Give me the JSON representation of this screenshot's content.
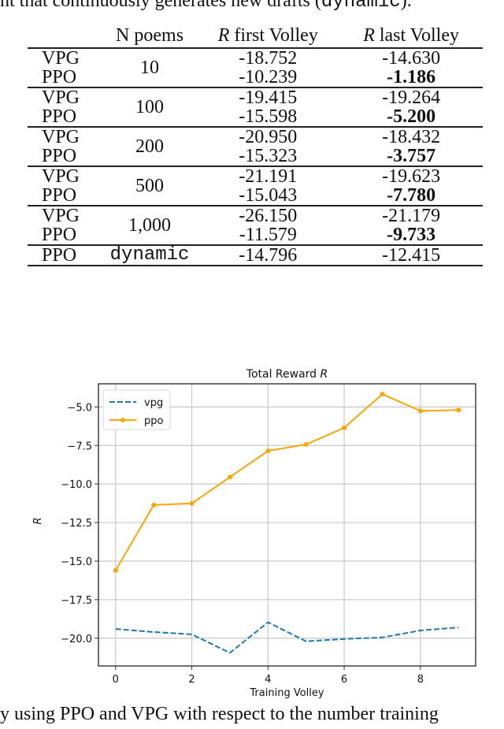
{
  "top_text": {
    "before": "nt that continuously generates new drafts (",
    "code": "dynamic",
    "after": ")."
  },
  "table": {
    "headers": {
      "method": "",
      "n_poems": "N poems",
      "first_r": "R",
      "first_label": " first Volley",
      "last_r": "R",
      "last_label": " last Volley"
    },
    "groups": [
      {
        "n": "10",
        "rows": [
          {
            "method": "VPG",
            "first": "-18.752",
            "last": "-14.630",
            "bold": false
          },
          {
            "method": "PPO",
            "first": "-10.239",
            "last": "-1.186",
            "bold": true
          }
        ]
      },
      {
        "n": "100",
        "rows": [
          {
            "method": "VPG",
            "first": "-19.415",
            "last": "-19.264",
            "bold": false
          },
          {
            "method": "PPO",
            "first": "-15.598",
            "last": "-5.200",
            "bold": true
          }
        ]
      },
      {
        "n": "200",
        "rows": [
          {
            "method": "VPG",
            "first": "-20.950",
            "last": "-18.432",
            "bold": false
          },
          {
            "method": "PPO",
            "first": "-15.323",
            "last": "-3.757",
            "bold": true
          }
        ]
      },
      {
        "n": "500",
        "rows": [
          {
            "method": "VPG",
            "first": "-21.191",
            "last": "-19.623",
            "bold": false
          },
          {
            "method": "PPO",
            "first": "-15.043",
            "last": "-7.780",
            "bold": true
          }
        ]
      },
      {
        "n": "1,000",
        "rows": [
          {
            "method": "VPG",
            "first": "-26.150",
            "last": "-21.179",
            "bold": false
          },
          {
            "method": "PPO",
            "first": "-11.579",
            "last": "-9.733",
            "bold": true
          }
        ]
      },
      {
        "n": "dynamic",
        "mono": true,
        "rows": [
          {
            "method": "PPO",
            "first": "-14.796",
            "last": "-12.415",
            "bold": false
          }
        ]
      }
    ]
  },
  "chart_data": {
    "type": "line",
    "title": "Total Reward R",
    "xlabel": "Training Volley",
    "ylabel": "R",
    "x": [
      0,
      1,
      2,
      3,
      4,
      5,
      6,
      7,
      8,
      9
    ],
    "xticks": [
      "0",
      "2",
      "4",
      "6",
      "8"
    ],
    "yticks": [
      "-5.0",
      "-7.5",
      "-10.0",
      "-12.5",
      "-15.0",
      "-17.5",
      "-20.0"
    ],
    "xlim": [
      -0.45,
      9.45
    ],
    "ylim": [
      -21.8,
      -3.5
    ],
    "grid": true,
    "legend_position": "upper left",
    "series": [
      {
        "name": "vpg",
        "style": "dashed",
        "color": "#1f77b4",
        "values": [
          -19.4,
          -19.6,
          -19.75,
          -20.95,
          -18.97,
          -20.2,
          -20.05,
          -19.95,
          -19.5,
          -19.3
        ]
      },
      {
        "name": "ppo",
        "style": "solid-marker",
        "color": "#ffa500",
        "values": [
          -15.6,
          -11.36,
          -11.26,
          -9.55,
          -7.85,
          -7.43,
          -6.35,
          -4.17,
          -5.26,
          -5.2
        ]
      }
    ]
  },
  "caption": {
    "text": "y using PPO and VPG with respect to the number training"
  }
}
